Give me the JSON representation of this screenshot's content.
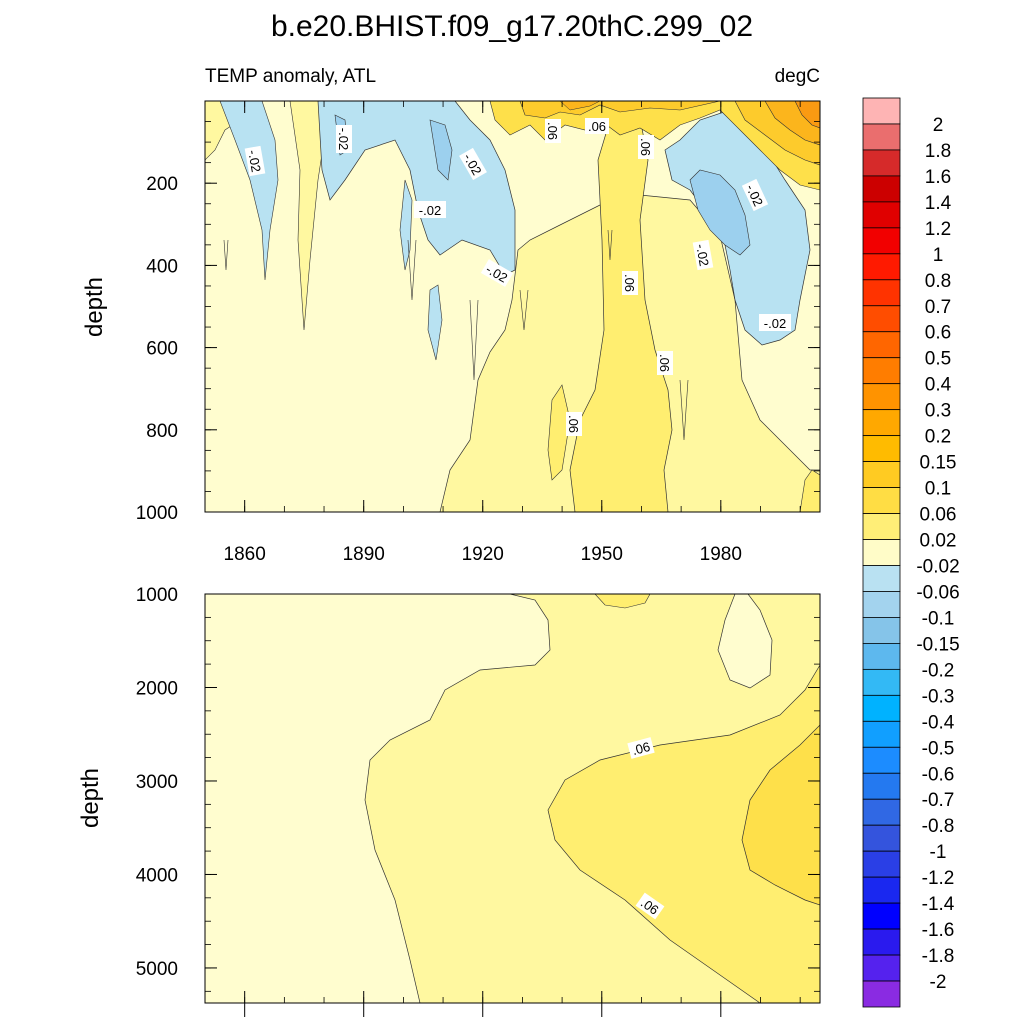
{
  "figure": {
    "title": "b.e20.BHIST.f09_g17.20thC.299_02",
    "subtitle_left": "TEMP anomaly, ATL",
    "subtitle_right": "degC"
  },
  "chart_data": [
    {
      "type": "heatmap",
      "panel": "upper",
      "title": "TEMP anomaly, ATL",
      "units": "degC",
      "xlabel": "",
      "ylabel": "depth",
      "x_ticks": [
        "1860",
        "1890",
        "1920",
        "1950",
        "1980"
      ],
      "y_ticks": [
        "200",
        "400",
        "600",
        "800",
        "1000"
      ],
      "xlim": [
        1850,
        2005
      ],
      "ylim": [
        1000,
        0
      ],
      "contour_labels": [
        ".06",
        ".06",
        ".06",
        ".06",
        ".06",
        ".06",
        "-.02",
        "-.02",
        "-.02",
        "-.02",
        "-.02",
        "-.02",
        "-.02"
      ],
      "colors": {
        "neg_002_006": "#b8e2f2",
        "neg_006_010": "#9cd0ee",
        "pos_002_minus": "#fffdcf",
        "pos_002_006": "#fff8a0",
        "pos_006_010": "#ffee70",
        "pos_010_015": "#fee04a",
        "pos_015_020": "#fdcb2c",
        "pos_020_030": "#fcb51c",
        "pos_030_040": "#fa9a12"
      }
    },
    {
      "type": "heatmap",
      "panel": "lower",
      "xlabel": "",
      "ylabel": "depth",
      "y_ticks": [
        "1000",
        "2000",
        "3000",
        "4000",
        "5000"
      ],
      "xlim": [
        1850,
        2005
      ],
      "ylim": [
        5375,
        1000
      ],
      "contour_labels": [
        ".06",
        ".06"
      ]
    }
  ],
  "colorbar": {
    "labels": [
      "2",
      "1.8",
      "1.6",
      "1.4",
      "1.2",
      "1",
      "0.8",
      "0.7",
      "0.6",
      "0.5",
      "0.4",
      "0.3",
      "0.2",
      "0.15",
      "0.1",
      "0.06",
      "0.02",
      "-0.02",
      "-0.06",
      "-0.1",
      "-0.15",
      "-0.2",
      "-0.3",
      "-0.4",
      "-0.5",
      "-0.6",
      "-0.7",
      "-0.8",
      "-1",
      "-1.2",
      "-1.4",
      "-1.6",
      "-1.8",
      "-2"
    ],
    "colors": [
      "#feb4b4",
      "#ea6e6e",
      "#d62a2a",
      "#cc0000",
      "#e00000",
      "#f20000",
      "#ff1a00",
      "#ff3300",
      "#ff4d00",
      "#ff6600",
      "#ff7d00",
      "#ff9300",
      "#ffa800",
      "#ffbb00",
      "#ffcb22",
      "#ffdd44",
      "#ffee77",
      "#fffcc8",
      "#b9e1f2",
      "#a3d3ee",
      "#85c4e9",
      "#5db8ee",
      "#33b9f5",
      "#00b2ff",
      "#119fff",
      "#1c8cff",
      "#2479f0",
      "#3068e4",
      "#3454dd",
      "#2a3fe6",
      "#1a28f0",
      "#0000ff",
      "#2a1aee",
      "#5522ee",
      "#8a2be2"
    ]
  }
}
